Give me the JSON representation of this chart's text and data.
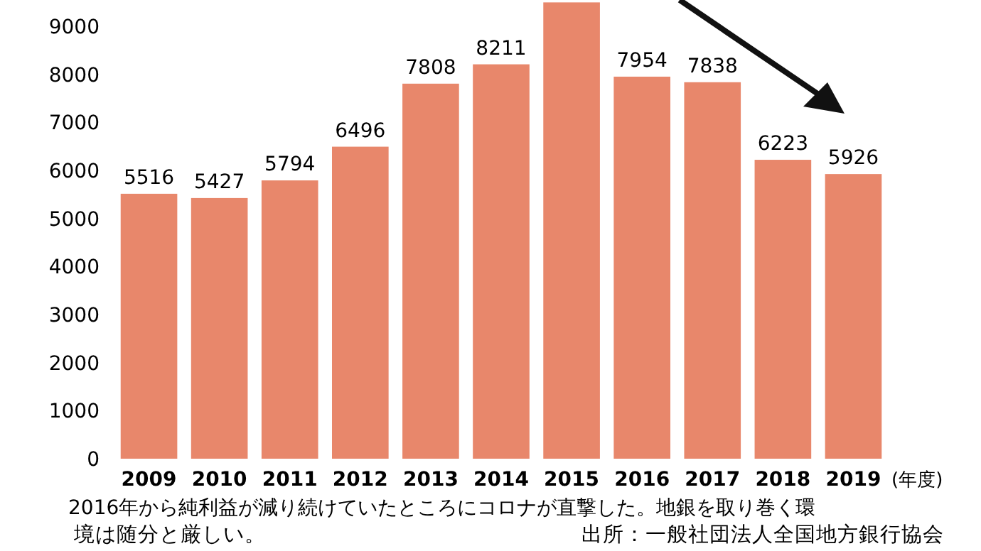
{
  "chart_data": {
    "type": "bar",
    "xlabel": "(年度)",
    "categories": [
      "2009",
      "2010",
      "2011",
      "2012",
      "2013",
      "2014",
      "2015",
      "2016",
      "2017",
      "2018",
      "2019"
    ],
    "values": [
      5516,
      5427,
      5794,
      6496,
      7808,
      8211,
      9500,
      7954,
      7838,
      6223,
      5926
    ],
    "value_labels": [
      "5516",
      "5427",
      "5794",
      "6496",
      "7808",
      "8211",
      null,
      "7954",
      "7838",
      "6223",
      "5926"
    ],
    "color": "#e8876b",
    "ylim": [
      0,
      9550
    ],
    "yticks": [
      0,
      1000,
      2000,
      3000,
      4000,
      5000,
      6000,
      7000,
      8000,
      9000
    ],
    "grid": false,
    "annotations": [
      "2016年から純利益が減り続けていたところにコロナが直撃した。地銀を取り巻く環境は随分と厳しい。",
      "出所：一般社団法人全国地方銀行協会"
    ]
  }
}
